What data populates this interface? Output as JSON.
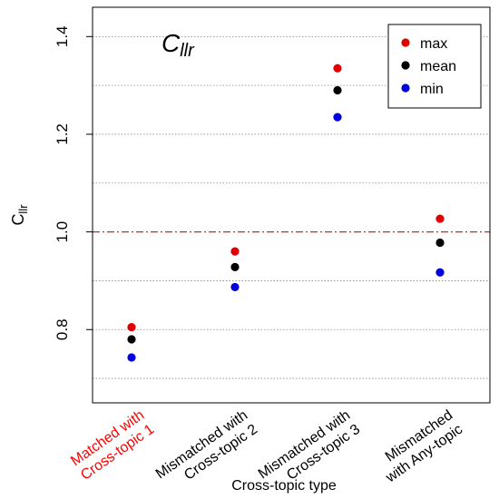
{
  "chart_data": {
    "type": "scatter",
    "inner_title": {
      "main": "C",
      "sub": "llr"
    },
    "ylabel": {
      "main": "C",
      "sub": "llr"
    },
    "xlabel": "Cross-topic type",
    "ylim": [
      0.65,
      1.46
    ],
    "yticks_labeled": [
      0.8,
      1.0,
      1.2,
      1.4
    ],
    "ygrid": [
      0.7,
      0.8,
      0.9,
      1.1,
      1.2,
      1.3,
      1.4
    ],
    "reference_line": {
      "y": 1.0,
      "color": "#d62728",
      "style": "dash-dot"
    },
    "categories": [
      {
        "lines": [
          "Matched with",
          "Cross-topic 1"
        ],
        "color": "#ff0000"
      },
      {
        "lines": [
          "Mismatched with",
          "Cross-topic 2"
        ],
        "color": "#000000"
      },
      {
        "lines": [
          "Mismatched with",
          "Cross-topic 3"
        ],
        "color": "#000000"
      },
      {
        "lines": [
          "Mismatched",
          "with Any-topic"
        ],
        "color": "#000000"
      }
    ],
    "series": [
      {
        "name": "max",
        "color": "#e00000",
        "values": [
          0.805,
          0.96,
          1.335,
          1.027
        ]
      },
      {
        "name": "mean",
        "color": "#000000",
        "values": [
          0.78,
          0.928,
          1.29,
          0.978
        ]
      },
      {
        "name": "min",
        "color": "#0000dd",
        "values": [
          0.743,
          0.887,
          1.235,
          0.917
        ]
      }
    ],
    "legend": {
      "position": "top-right"
    },
    "grid": true
  }
}
